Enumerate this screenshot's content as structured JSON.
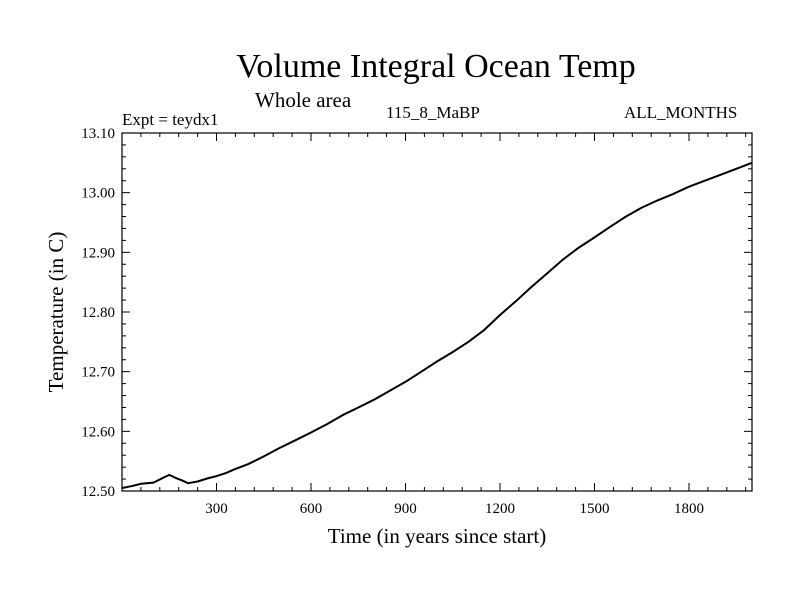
{
  "chart_data": {
    "type": "line",
    "title": "Volume Integral Ocean Temp",
    "subtitle": "Whole area",
    "expt_label": "Expt = teydx1",
    "period_label": "115_8_MaBP",
    "season_label": "ALL_MONTHS",
    "xlabel": "Time (in years since start)",
    "ylabel": "Temperature (in C)",
    "xlim": [
      0,
      2000
    ],
    "ylim": [
      12.5,
      13.1
    ],
    "xticks": [
      300,
      600,
      900,
      1200,
      1500,
      1800
    ],
    "xtick_labels": [
      "300",
      "600",
      "900",
      "1200",
      "1500",
      "1800"
    ],
    "yticks": [
      12.5,
      12.6,
      12.7,
      12.8,
      12.9,
      13.0,
      13.1
    ],
    "ytick_labels": [
      "12.50",
      "12.60",
      "12.70",
      "12.80",
      "12.90",
      "13.00",
      "13.10"
    ],
    "series": [
      {
        "name": "teydx1",
        "x": [
          0,
          30,
          60,
          100,
          130,
          150,
          170,
          190,
          210,
          240,
          270,
          300,
          330,
          360,
          400,
          450,
          500,
          550,
          600,
          650,
          700,
          750,
          800,
          850,
          900,
          950,
          1000,
          1050,
          1100,
          1150,
          1200,
          1250,
          1300,
          1350,
          1400,
          1450,
          1500,
          1550,
          1600,
          1650,
          1700,
          1750,
          1800,
          1850,
          1900,
          1950,
          2000
        ],
        "values": [
          12.505,
          12.508,
          12.512,
          12.514,
          12.522,
          12.527,
          12.522,
          12.518,
          12.513,
          12.516,
          12.521,
          12.525,
          12.53,
          12.537,
          12.545,
          12.558,
          12.572,
          12.585,
          12.598,
          12.612,
          12.627,
          12.64,
          12.653,
          12.668,
          12.683,
          12.7,
          12.717,
          12.733,
          12.75,
          12.77,
          12.795,
          12.818,
          12.842,
          12.865,
          12.888,
          12.908,
          12.925,
          12.943,
          12.96,
          12.975,
          12.987,
          12.998,
          13.01,
          13.02,
          13.03,
          13.04,
          13.05
        ]
      }
    ]
  }
}
